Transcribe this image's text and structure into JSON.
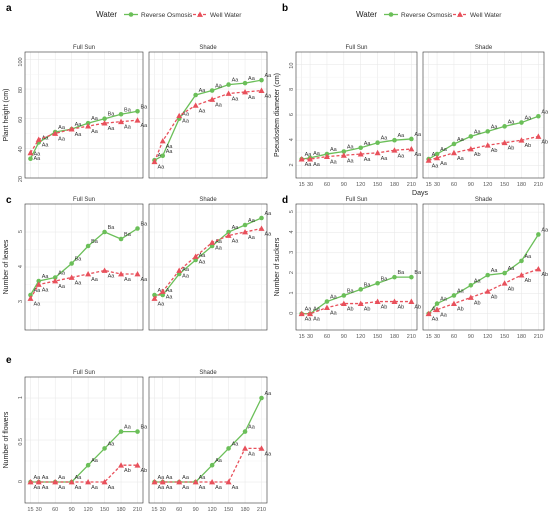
{
  "legend": {
    "title": "Water",
    "items": [
      {
        "label": "Reverse Osmosis",
        "color": "#6bbf59",
        "dash": "solid",
        "marker": "circle"
      },
      {
        "label": "Well Water",
        "color": "#e8505b",
        "dash": "dashed",
        "marker": "triangle"
      }
    ]
  },
  "x_axis_title": "Days",
  "x_ticks": [
    15,
    30,
    60,
    90,
    120,
    150,
    180,
    210
  ],
  "facets": [
    "Full Sun",
    "Shade"
  ],
  "chart_data": [
    {
      "panel": "a",
      "type": "line",
      "ylabel": "Plant height (cm)",
      "ylim": [
        20,
        105
      ],
      "yticks": [
        20,
        40,
        60,
        80,
        100
      ],
      "x": [
        15,
        30,
        60,
        90,
        120,
        150,
        180,
        210
      ],
      "facets": [
        {
          "title": "Full Sun",
          "series": [
            {
              "name": "Reverse Osmosis",
              "values": [
                33,
                44,
                51,
                53,
                57,
                60,
                63,
                65
              ],
              "labels": [
                "Aa",
                "Aa",
                "Aa",
                "Aa",
                "Aa",
                "Ba",
                "Ba",
                "Ba"
              ]
            },
            {
              "name": "Well Water",
              "values": [
                37,
                46,
                50,
                53,
                55,
                57,
                58,
                59
              ],
              "labels": [
                "Aa",
                "Aa",
                "Aa",
                "Aa",
                "Aa",
                "Aa",
                "Aa",
                "Aa"
              ]
            }
          ]
        },
        {
          "title": "Shade",
          "series": [
            {
              "name": "Reverse Osmosis",
              "values": [
                32,
                35,
                60,
                76,
                79,
                83,
                84,
                86
              ],
              "labels": [
                "Aa",
                "Aa",
                "Aa",
                "Aa",
                "Aa",
                "Aa",
                "Aa",
                "Aa"
              ]
            },
            {
              "name": "Well Water",
              "values": [
                31,
                45,
                62,
                69,
                73,
                77,
                78,
                79
              ],
              "labels": [
                "Aa",
                "Aa",
                "Aa",
                "Aa",
                "Aa",
                "Aa",
                "Aa",
                "Aa"
              ]
            }
          ]
        }
      ]
    },
    {
      "panel": "b",
      "type": "line",
      "ylabel": "Pseudostem diameter (cm)",
      "ylim": [
        1,
        11
      ],
      "yticks": [
        2,
        4,
        6,
        8,
        10
      ],
      "x": [
        15,
        30,
        60,
        90,
        120,
        150,
        180,
        210
      ],
      "facets": [
        {
          "title": "Full Sun",
          "series": [
            {
              "name": "Reverse Osmosis",
              "values": [
                2.5,
                2.6,
                2.9,
                3.1,
                3.4,
                3.8,
                4.0,
                4.1
              ],
              "labels": [
                "Aa",
                "Aa",
                "Aa",
                "Aa",
                "Aa",
                "Aa",
                "Aa",
                "Aa"
              ]
            },
            {
              "name": "Well Water",
              "values": [
                2.5,
                2.5,
                2.7,
                2.8,
                2.9,
                3.0,
                3.2,
                3.3
              ],
              "labels": [
                "Aa",
                "Aa",
                "Aa",
                "Aa",
                "Aa",
                "Aa",
                "Aa",
                "Aa"
              ]
            }
          ]
        },
        {
          "title": "Shade",
          "series": [
            {
              "name": "Reverse Osmosis",
              "values": [
                2.5,
                2.9,
                3.7,
                4.3,
                4.7,
                5.1,
                5.4,
                5.9
              ],
              "labels": [
                "Aa",
                "Aa",
                "Aa",
                "Aa",
                "Aa",
                "Aa",
                "Aa",
                "Aa"
              ]
            },
            {
              "name": "Well Water",
              "values": [
                2.4,
                2.6,
                3.0,
                3.3,
                3.6,
                3.8,
                4.0,
                4.3
              ],
              "labels": [
                "Aa",
                "Aa",
                "Aa",
                "Ab",
                "Ab",
                "Ab",
                "Ab",
                "Ab"
              ]
            }
          ]
        }
      ]
    },
    {
      "panel": "c",
      "type": "line",
      "ylabel": "Number of leaves",
      "ylim": [
        2.2,
        5.8
      ],
      "yticks": [
        3,
        4,
        5
      ],
      "x": [
        15,
        30,
        60,
        90,
        120,
        150,
        180,
        210
      ],
      "facets": [
        {
          "title": "Full Sun",
          "series": [
            {
              "name": "Reverse Osmosis",
              "values": [
                3.2,
                3.6,
                3.7,
                4.1,
                4.6,
                5.0,
                4.8,
                5.1
              ],
              "labels": [
                "Aa",
                "Aa",
                "Aa",
                "Ba",
                "Ba",
                "Ba",
                "Ba",
                "Ba"
              ]
            },
            {
              "name": "Well Water",
              "values": [
                3.1,
                3.5,
                3.6,
                3.7,
                3.8,
                3.9,
                3.8,
                3.8
              ],
              "labels": [
                "Aa",
                "Aa",
                "Aa",
                "Aa",
                "Aa",
                "Aa",
                "Aa",
                "Aa"
              ]
            }
          ]
        },
        {
          "title": "Shade",
          "series": [
            {
              "name": "Reverse Osmosis",
              "values": [
                3.2,
                3.2,
                3.8,
                4.2,
                4.6,
                5.0,
                5.2,
                5.4
              ],
              "labels": [
                "Aa",
                "Aa",
                "Aa",
                "Aa",
                "Aa",
                "Aa",
                "Aa",
                "Aa"
              ]
            },
            {
              "name": "Well Water",
              "values": [
                3.1,
                3.3,
                3.9,
                4.3,
                4.7,
                4.9,
                5.0,
                5.1
              ],
              "labels": [
                "Aa",
                "Aa",
                "Aa",
                "Aa",
                "Aa",
                "Aa",
                "Aa",
                "Aa"
              ]
            }
          ]
        }
      ]
    },
    {
      "panel": "d",
      "type": "line",
      "ylabel": "Number of suckers",
      "ylim": [
        -0.8,
        5.4
      ],
      "yticks": [
        0,
        1,
        2,
        3,
        4,
        5
      ],
      "x": [
        15,
        30,
        60,
        90,
        120,
        150,
        180,
        210
      ],
      "facets": [
        {
          "title": "Full Sun",
          "series": [
            {
              "name": "Reverse Osmosis",
              "values": [
                0,
                0,
                0.6,
                0.9,
                1.2,
                1.5,
                1.8,
                1.8
              ],
              "labels": [
                "Aa",
                "Aa",
                "Aa",
                "Ba",
                "Ba",
                "Ba",
                "Ba",
                "Ba"
              ]
            },
            {
              "name": "Well Water",
              "values": [
                0,
                0,
                0.3,
                0.5,
                0.5,
                0.6,
                0.6,
                0.6
              ],
              "labels": [
                "Aa",
                "Aa",
                "Aa",
                "Ab",
                "Ab",
                "Ab",
                "Ab",
                "Ab"
              ]
            }
          ]
        },
        {
          "title": "Shade",
          "series": [
            {
              "name": "Reverse Osmosis",
              "values": [
                0,
                0.5,
                0.9,
                1.4,
                1.9,
                2.0,
                2.6,
                3.9
              ],
              "labels": [
                "Aa",
                "Aa",
                "Aa",
                "Aa",
                "Aa",
                "Aa",
                "Aa",
                "Aa"
              ]
            },
            {
              "name": "Well Water",
              "values": [
                0,
                0.2,
                0.5,
                0.8,
                1.1,
                1.5,
                1.9,
                2.2
              ],
              "labels": [
                "Aa",
                "Aa",
                "Ab",
                "Ab",
                "Ab",
                "Ab",
                "Ab",
                "Ab"
              ]
            }
          ]
        }
      ]
    },
    {
      "panel": "e",
      "type": "line",
      "ylabel": "Number of flowers",
      "ylim": [
        -0.25,
        1.25
      ],
      "yticks": [
        0.0,
        0.5,
        1.0
      ],
      "x": [
        15,
        30,
        60,
        90,
        120,
        150,
        180,
        210
      ],
      "facets": [
        {
          "title": "Full Sun",
          "series": [
            {
              "name": "Reverse Osmosis",
              "values": [
                0,
                0,
                0,
                0,
                0.2,
                0.4,
                0.6,
                0.6
              ],
              "labels": [
                "Aa",
                "Aa",
                "Aa",
                "Aa",
                "Aa",
                "Aa",
                "Aa",
                "Ba"
              ]
            },
            {
              "name": "Well Water",
              "values": [
                0,
                0,
                0,
                0,
                0,
                0,
                0.2,
                0.2
              ],
              "labels": [
                "Aa",
                "Aa",
                "Aa",
                "Aa",
                "Aa",
                "Aa",
                "Ab",
                "Ab"
              ]
            }
          ]
        },
        {
          "title": "Shade",
          "series": [
            {
              "name": "Reverse Osmosis",
              "values": [
                0,
                0,
                0,
                0,
                0.2,
                0.4,
                0.6,
                1.0
              ],
              "labels": [
                "Aa",
                "Aa",
                "Aa",
                "Aa",
                "Aa",
                "Aa",
                "Aa",
                "Aa"
              ]
            },
            {
              "name": "Well Water",
              "values": [
                0,
                0,
                0,
                0,
                0,
                0,
                0.4,
                0.4
              ],
              "labels": [
                "Aa",
                "Aa",
                "Aa",
                "Aa",
                "Aa",
                "Aa",
                "Aa",
                "Aa"
              ]
            }
          ]
        }
      ]
    }
  ]
}
